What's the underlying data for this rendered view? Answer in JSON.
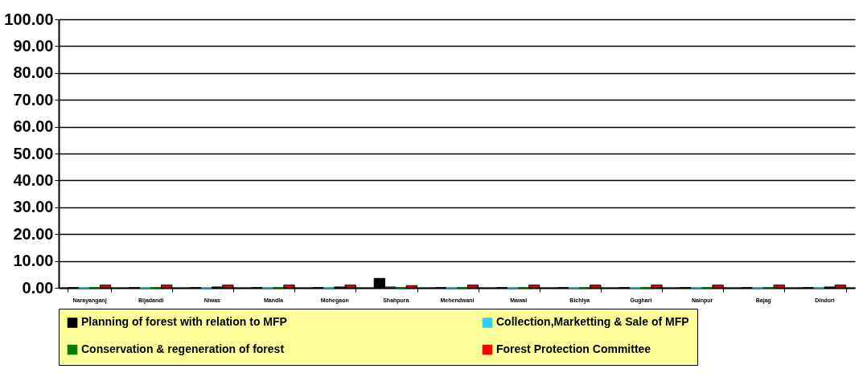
{
  "chart_data": {
    "type": "bar",
    "categories": [
      "Narayanganj",
      "Bijadandi",
      "Niwas",
      "Mandla",
      "Mohegaon",
      "Shahpura",
      "Mehendwani",
      "Mawai",
      "Bichiya",
      "Gughari",
      "Nainpur",
      "Bajag",
      "Dindori"
    ],
    "series": [
      {
        "name": "Planning of forest with relation to MFP",
        "color": "#000000",
        "values": [
          0,
          0,
          0,
          0,
          0,
          3.5,
          0,
          0,
          0,
          0,
          0,
          0,
          0
        ]
      },
      {
        "name": "Collection,Marketting & Sale of MFP",
        "color": "#33ccff",
        "values": [
          0,
          0,
          0,
          0,
          0,
          0.3,
          0,
          0,
          0,
          0,
          0,
          0,
          0
        ]
      },
      {
        "name": "Conservation & regeneration of forest",
        "color": "#008000",
        "values": [
          0,
          0,
          0.3,
          0,
          0.3,
          0,
          0,
          0,
          0,
          0,
          0,
          0,
          0.3
        ]
      },
      {
        "name": "Forest Protection Committee",
        "color": "#ff0000",
        "values": [
          1,
          1,
          1,
          1,
          1,
          0.8,
          1,
          1,
          1,
          1,
          1,
          1,
          1
        ]
      }
    ],
    "ylim": [
      0,
      100
    ],
    "yticks": [
      {
        "value": 0,
        "label": "0.00"
      },
      {
        "value": 10,
        "label": "10.00"
      },
      {
        "value": 20,
        "label": "20.00"
      },
      {
        "value": 30,
        "label": "30.00"
      },
      {
        "value": 40,
        "label": "40.00"
      },
      {
        "value": 50,
        "label": "50.00"
      },
      {
        "value": 60,
        "label": "60.00"
      },
      {
        "value": 70,
        "label": "70.00"
      },
      {
        "value": 80,
        "label": "80.00"
      },
      {
        "value": 90,
        "label": "90.00"
      },
      {
        "value": 100,
        "label": "100.00"
      }
    ],
    "grid": "y",
    "legend": "bottom"
  }
}
